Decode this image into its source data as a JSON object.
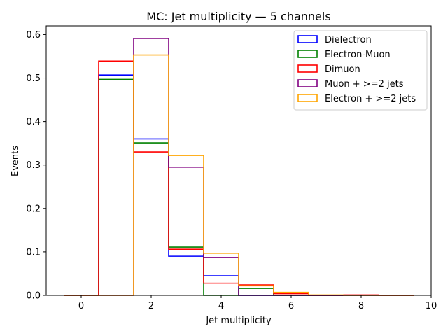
{
  "chart_data": {
    "type": "bar",
    "title": "MC: Jet multiplicity — 5 channels",
    "xlabel": "Jet multiplicity",
    "ylabel": "Events",
    "xlim": [
      -1,
      10
    ],
    "ylim": [
      0,
      0.62
    ],
    "xticks": [
      0,
      2,
      4,
      6,
      8,
      10
    ],
    "yticks": [
      0.0,
      0.1,
      0.2,
      0.3,
      0.4,
      0.5,
      0.6
    ],
    "ytick_labels": [
      "0.0",
      "0.1",
      "0.2",
      "0.3",
      "0.4",
      "0.5",
      "0.6"
    ],
    "bin_edges": [
      -0.5,
      0.5,
      1.5,
      2.5,
      3.5,
      4.5,
      5.5,
      6.5,
      7.5,
      8.5,
      9.5
    ],
    "grid": false,
    "legend_position": "top-right",
    "series": [
      {
        "name": "Dielectron",
        "color": "#0000ff",
        "values": [
          0,
          0.507,
          0.36,
          0.09,
          0.045,
          0.0,
          0.0,
          0.0,
          0.0,
          0.0
        ]
      },
      {
        "name": "Electron-Muon",
        "color": "#008000",
        "values": [
          0,
          0.497,
          0.351,
          0.111,
          0.0,
          0.016,
          0.0,
          0.0,
          0.0,
          0.0
        ]
      },
      {
        "name": "Dimuon",
        "color": "#ff0000",
        "values": [
          0,
          0.539,
          0.33,
          0.106,
          0.028,
          0.024,
          0.004,
          0.0,
          0.001,
          0.0
        ]
      },
      {
        "name": "Muon + >=2 jets",
        "color": "#800080",
        "values": [
          0,
          0,
          0.591,
          0.295,
          0.087,
          0.0,
          0.0,
          0.0,
          0.0,
          0.0
        ]
      },
      {
        "name": "Electron + >=2 jets",
        "color": "#ffa500",
        "values": [
          0,
          0,
          0.553,
          0.322,
          0.097,
          0.022,
          0.007,
          0.001,
          0.0,
          0.0
        ]
      }
    ]
  }
}
